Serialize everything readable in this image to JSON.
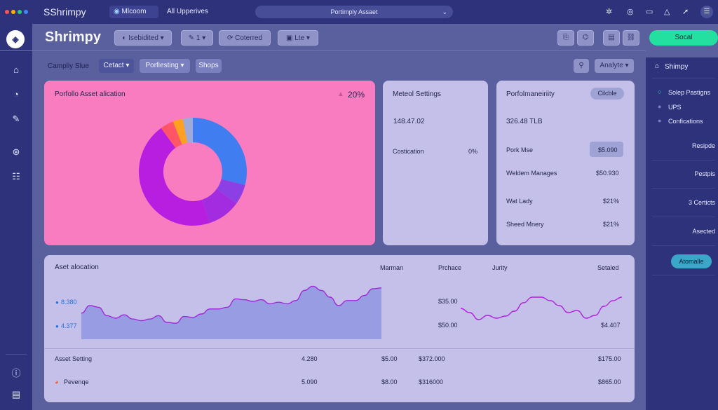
{
  "topbar": {
    "title": "SShrimpy",
    "tab_label": "Mlcoom",
    "tab_extra": "All Upperives",
    "search": "Portimply Assaet",
    "colors": [
      "#ff5252",
      "#ffb300",
      "#2ecc71",
      "#4285f4"
    ]
  },
  "header": {
    "brand": "Shrimpy",
    "chip1": "Isebidited",
    "chip2": "1",
    "chip3": "Coterred",
    "chip4": "Lte",
    "search_button": "Socal"
  },
  "subbar": {
    "label": "Campliy Slue",
    "select1": "Cetact",
    "select2": "Porfiesting",
    "select3": "Shops",
    "analyze": "Analyte"
  },
  "pie_card": {
    "title": "Porfollo Asset alication",
    "value": "20%",
    "slices": [
      {
        "value": 29,
        "color": "#3f7df0"
      },
      {
        "value": 6,
        "color": "#8d3fe6"
      },
      {
        "value": 10,
        "color": "#a32be0"
      },
      {
        "value": 45,
        "color": "#b81ee0"
      },
      {
        "value": 4,
        "color": "#ff5566"
      },
      {
        "value": 3,
        "color": "#ffa020"
      },
      {
        "value": 3,
        "color": "#9faad8"
      }
    ]
  },
  "settings_card": {
    "title": "Meteol Settings",
    "value": "148.47.02",
    "row_label": "Costication",
    "row_value": "0%"
  },
  "perf_card": {
    "title": "Porfolmaneiriity",
    "badge": "Cilcble",
    "value": "326.48 TLB",
    "rows": [
      {
        "label": "Pork Mse",
        "value": "$5.090"
      },
      {
        "label": "Weldem Manages",
        "value": "$50.930"
      },
      {
        "label": "Wat Lady",
        "value": "$21%"
      },
      {
        "label": "Sheed Mnery",
        "value": "$21%"
      }
    ]
  },
  "bottom": {
    "title": "Aset alocation",
    "col1": "Marman",
    "col2": "Prchace",
    "col3": "Jurity",
    "col4": "Setaled",
    "legend1": "8.380",
    "legend2": "4.377",
    "right_y1": "$35.00",
    "right_y2": "$50.00",
    "right_y3": "$4.407",
    "rows": [
      {
        "label": "Asset Setting",
        "c1": "4.280",
        "c2": "$5.00",
        "c3": "$372.000",
        "c4": "$175.00"
      },
      {
        "label": "Pevenqe",
        "c1": "5.090",
        "c2": "$8.00",
        "c3": "$316000",
        "c4": "$865.00"
      }
    ]
  },
  "right_panel": {
    "title": "Shimpy",
    "status": [
      {
        "label": "Solep Pastigns",
        "color": "#24e0a0"
      },
      {
        "label": "UPS",
        "color": "#7a80c8"
      },
      {
        "label": "Confications",
        "color": "#7a80c8"
      }
    ],
    "items": [
      "Resipde",
      "Pestpis",
      "3 Certicts",
      "Asected"
    ],
    "button": "Atomalle"
  },
  "chart_data": [
    {
      "type": "area",
      "title": "Aset alocation",
      "y": [
        31,
        40,
        38,
        28,
        25,
        29,
        24,
        22,
        24,
        28,
        20,
        19,
        27,
        26,
        30,
        36,
        36,
        38,
        48,
        47,
        45,
        47,
        42,
        44,
        42,
        46,
        58,
        63,
        58,
        50,
        40,
        46,
        46,
        52,
        60,
        61
      ]
    },
    {
      "type": "line",
      "y": [
        34,
        28,
        18,
        24,
        20,
        23,
        30,
        42,
        50,
        50,
        45,
        38,
        28,
        31,
        20,
        24,
        37,
        45,
        50
      ]
    }
  ]
}
